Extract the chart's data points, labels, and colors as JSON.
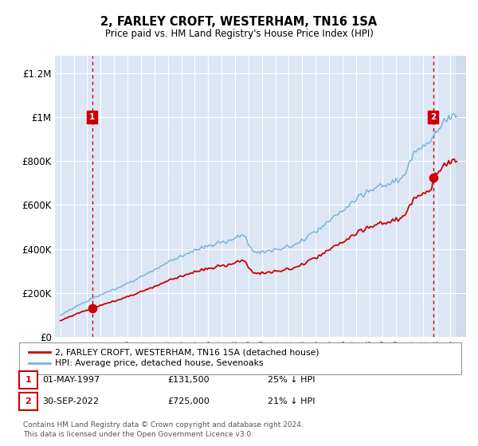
{
  "title": "2, FARLEY CROFT, WESTERHAM, TN16 1SA",
  "subtitle": "Price paid vs. HM Land Registry's House Price Index (HPI)",
  "legend_line1": "2, FARLEY CROFT, WESTERHAM, TN16 1SA (detached house)",
  "legend_line2": "HPI: Average price, detached house, Sevenoaks",
  "annotation1_date": "01-MAY-1997",
  "annotation1_price": "£131,500",
  "annotation1_hpi": "25% ↓ HPI",
  "annotation2_date": "30-SEP-2022",
  "annotation2_price": "£725,000",
  "annotation2_hpi": "21% ↓ HPI",
  "footnote": "Contains HM Land Registry data © Crown copyright and database right 2024.\nThis data is licensed under the Open Government Licence v3.0.",
  "ylabel_ticks": [
    "£0",
    "£200K",
    "£400K",
    "£600K",
    "£800K",
    "£1M",
    "£1.2M"
  ],
  "ytick_values": [
    0,
    200000,
    400000,
    600000,
    800000,
    1000000,
    1200000
  ],
  "plot_bg_color": "#dce6f5",
  "hpi_line_color": "#7ab4d8",
  "price_line_color": "#cc0000",
  "dashed_line_color": "#cc0000",
  "annotation_box_color": "#cc0000",
  "grid_color": "#ffffff",
  "buy1_year": 1997.37,
  "buy1_price": 131500,
  "buy2_year": 2022.75,
  "buy2_price": 725000,
  "hpi_start_year": 1995.0,
  "hpi_end_year": 2024.5,
  "xmin": 1994.6,
  "xmax": 2025.2,
  "ymin": 0,
  "ymax": 1280000
}
